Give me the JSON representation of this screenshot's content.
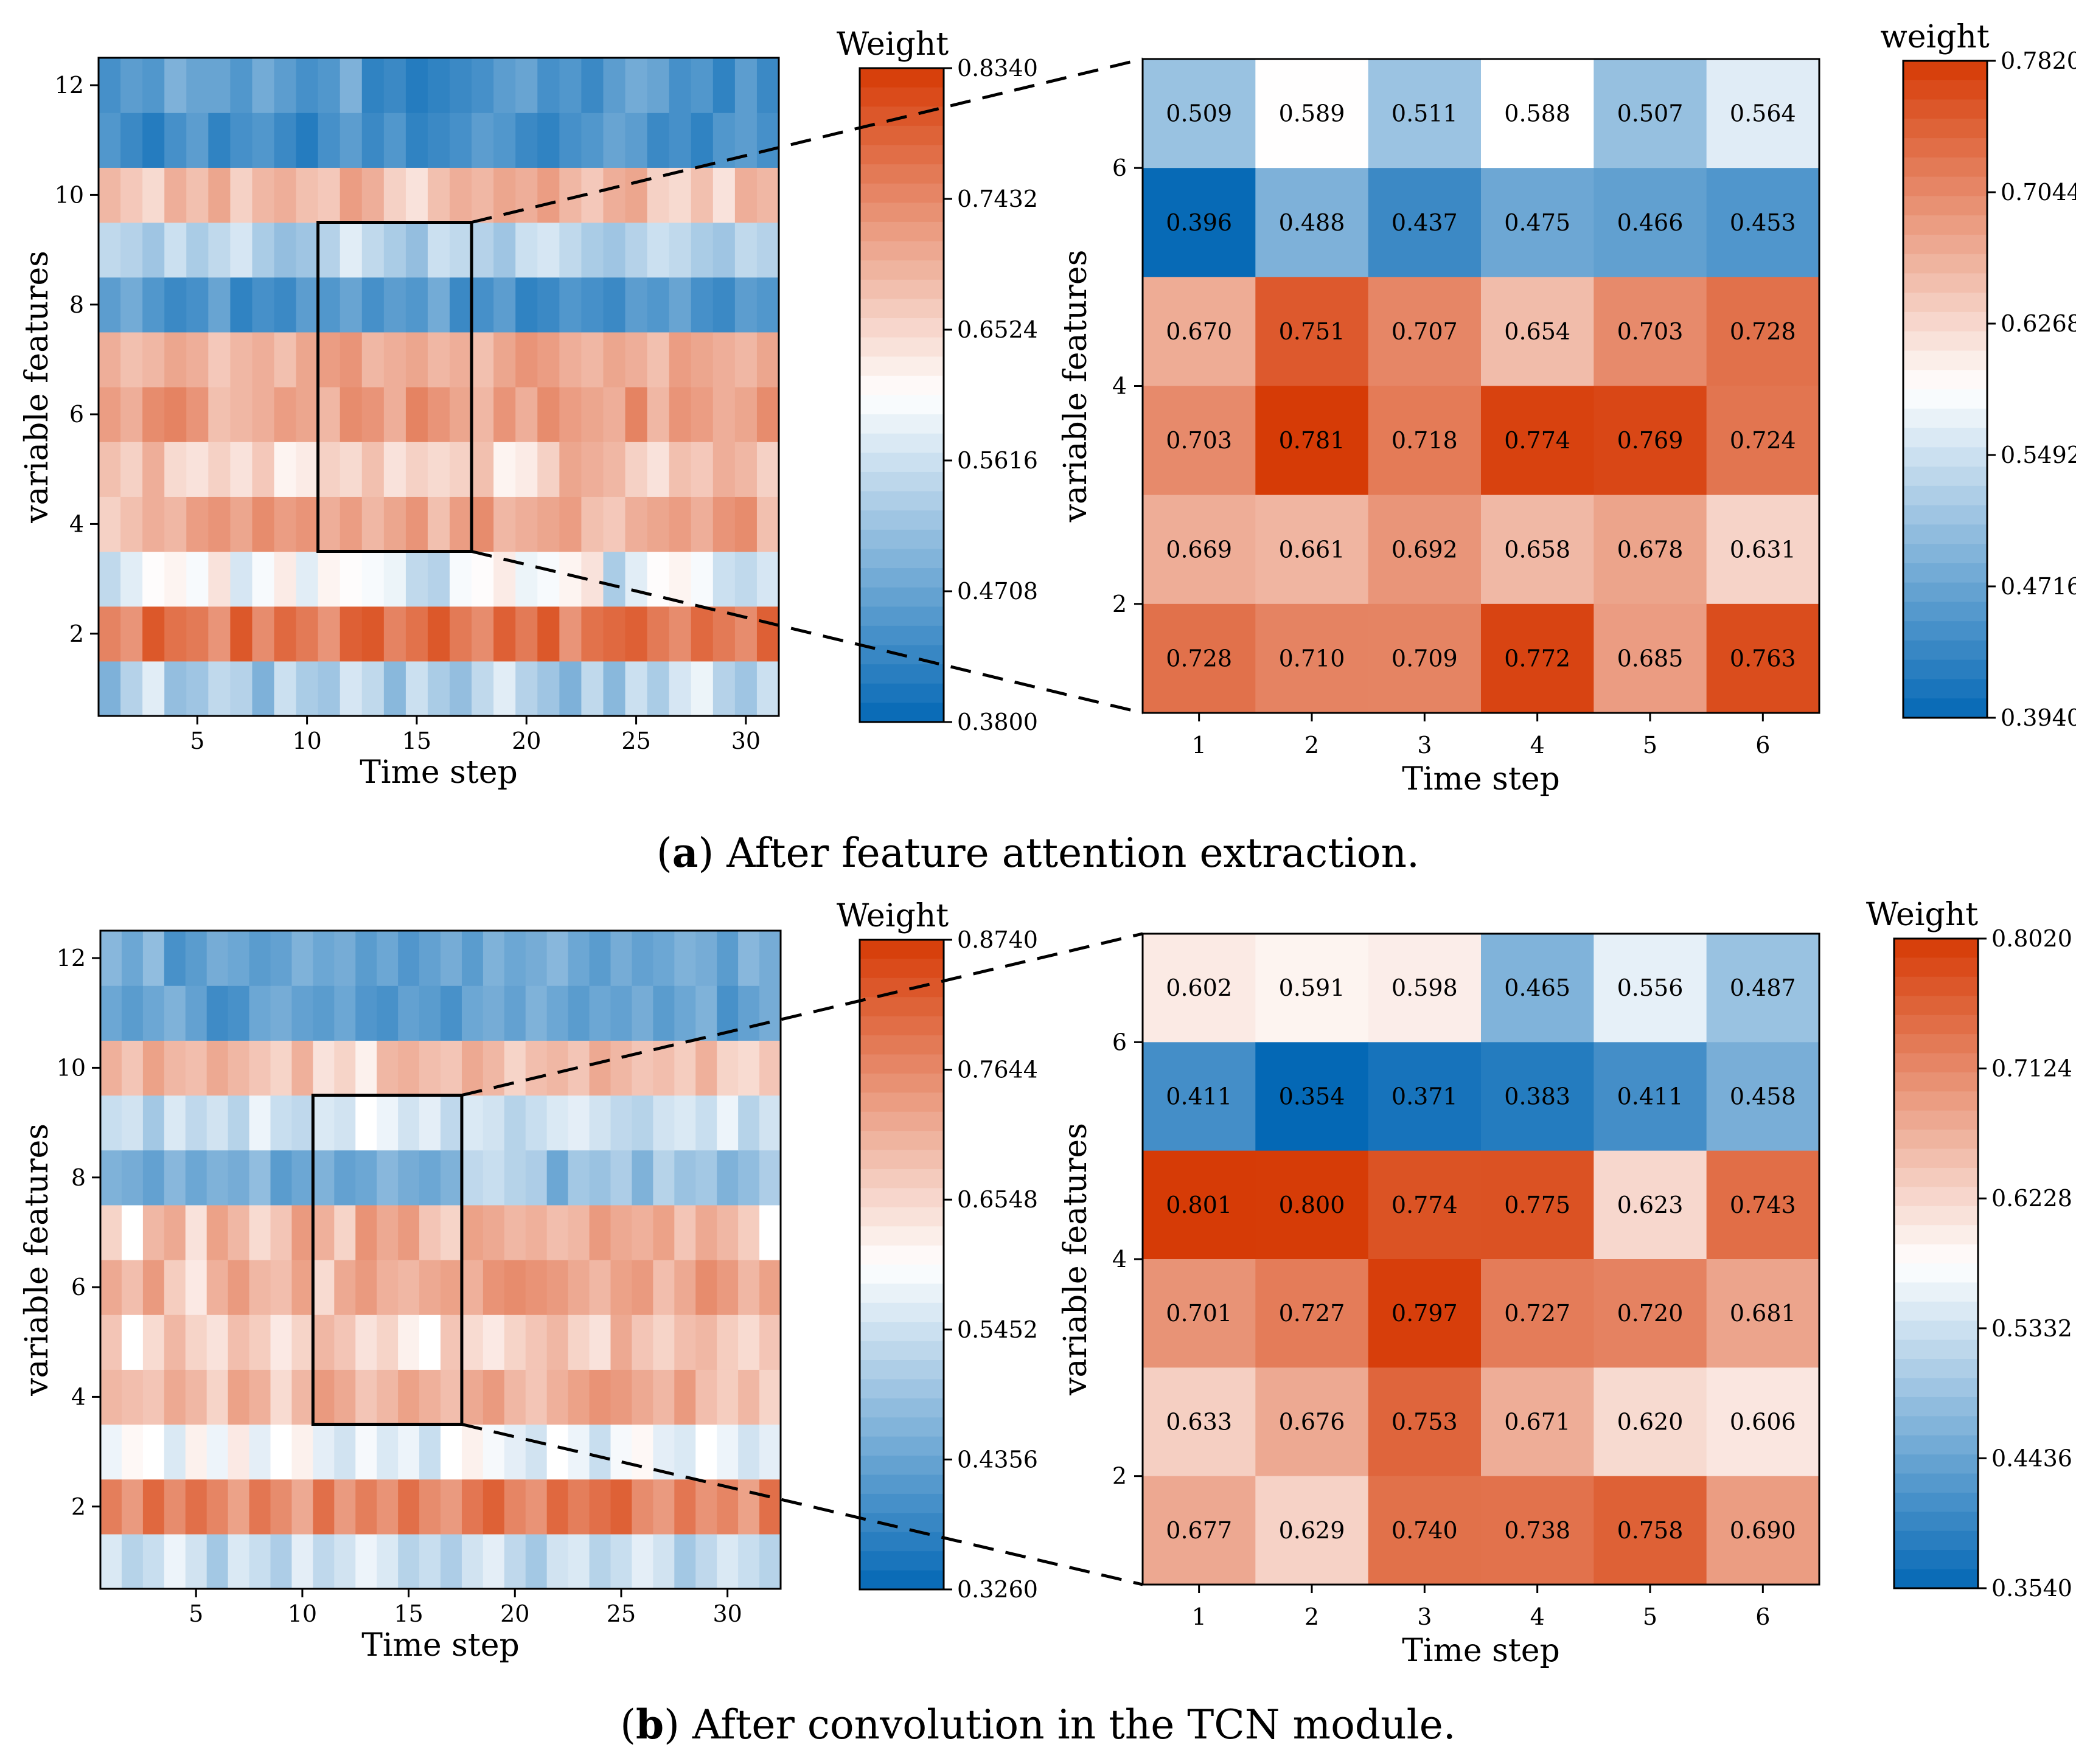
{
  "figure": {
    "captions": [
      {
        "letter": "a",
        "open": "(",
        "close": ")",
        "text": " After feature attention extraction."
      },
      {
        "letter": "b",
        "open": "(",
        "close": ")",
        "text": " After convolution in the TCN module."
      }
    ]
  },
  "colors": {
    "low": "#0468b5",
    "mid": "#ffffff",
    "high": "#d63a05",
    "axis": "#000000",
    "dark_text": "#111111",
    "light_text": "#ffffff"
  },
  "chart_data": [
    {
      "id": "a-overview",
      "type": "heatmap",
      "xlabel": "Time step",
      "ylabel": "variable features",
      "x_range": [
        1,
        31
      ],
      "y_range": [
        1,
        12
      ],
      "xticks": [
        5,
        10,
        15,
        20,
        25,
        30
      ],
      "yticks": [
        2,
        4,
        6,
        8,
        10,
        12
      ],
      "colorbar": {
        "title": "Weight",
        "ticks": [
          "0.8340",
          "0.7432",
          "0.6524",
          "0.5616",
          "0.4708",
          "0.3800"
        ],
        "vmin": 0.38,
        "vmax": 0.834
      },
      "zoom_window": {
        "x_range": [
          11,
          17
        ],
        "y_range": [
          4,
          9
        ]
      },
      "row_means": [
        0.53,
        0.77,
        0.6,
        0.71,
        0.66,
        0.72,
        0.7,
        0.45,
        0.55,
        0.69,
        0.44,
        0.45
      ],
      "values": [
        [
          0.49,
          0.54,
          0.58,
          0.51,
          0.52,
          0.55,
          0.54,
          0.49,
          0.56,
          0.53,
          0.52,
          0.57,
          0.55,
          0.5,
          0.56,
          0.53,
          0.51,
          0.55,
          0.58,
          0.54,
          0.52,
          0.49,
          0.55,
          0.5,
          0.56,
          0.53,
          0.57,
          0.59,
          0.54,
          0.52,
          0.56
        ],
        [
          0.75,
          0.73,
          0.8,
          0.77,
          0.76,
          0.73,
          0.8,
          0.74,
          0.78,
          0.76,
          0.73,
          0.79,
          0.8,
          0.75,
          0.77,
          0.8,
          0.76,
          0.74,
          0.79,
          0.76,
          0.8,
          0.73,
          0.77,
          0.78,
          0.79,
          0.76,
          0.74,
          0.78,
          0.76,
          0.74,
          0.79
        ],
        [
          0.55,
          0.58,
          0.61,
          0.62,
          0.6,
          0.64,
          0.57,
          0.6,
          0.63,
          0.58,
          0.62,
          0.61,
          0.6,
          0.59,
          0.55,
          0.54,
          0.6,
          0.61,
          0.63,
          0.59,
          0.6,
          0.62,
          0.64,
          0.53,
          0.58,
          0.61,
          0.62,
          0.6,
          0.56,
          0.55,
          0.57
        ],
        [
          0.66,
          0.68,
          0.7,
          0.69,
          0.72,
          0.73,
          0.71,
          0.74,
          0.72,
          0.73,
          0.7,
          0.72,
          0.69,
          0.71,
          0.73,
          0.68,
          0.72,
          0.74,
          0.69,
          0.7,
          0.71,
          0.72,
          0.68,
          0.67,
          0.7,
          0.71,
          0.72,
          0.7,
          0.73,
          0.74,
          0.68
        ],
        [
          0.68,
          0.66,
          0.7,
          0.65,
          0.64,
          0.66,
          0.64,
          0.67,
          0.62,
          0.63,
          0.66,
          0.65,
          0.68,
          0.64,
          0.66,
          0.65,
          0.66,
          0.68,
          0.62,
          0.63,
          0.66,
          0.71,
          0.7,
          0.69,
          0.66,
          0.64,
          0.68,
          0.67,
          0.7,
          0.69,
          0.66
        ],
        [
          0.72,
          0.7,
          0.74,
          0.75,
          0.73,
          0.68,
          0.69,
          0.7,
          0.72,
          0.71,
          0.69,
          0.74,
          0.73,
          0.7,
          0.75,
          0.73,
          0.71,
          0.69,
          0.73,
          0.7,
          0.74,
          0.72,
          0.71,
          0.7,
          0.75,
          0.69,
          0.73,
          0.72,
          0.7,
          0.71,
          0.74
        ],
        [
          0.7,
          0.68,
          0.69,
          0.71,
          0.7,
          0.67,
          0.69,
          0.7,
          0.68,
          0.71,
          0.72,
          0.73,
          0.69,
          0.7,
          0.71,
          0.69,
          0.7,
          0.68,
          0.71,
          0.73,
          0.72,
          0.7,
          0.69,
          0.71,
          0.7,
          0.68,
          0.72,
          0.71,
          0.7,
          0.69,
          0.71
        ],
        [
          0.46,
          0.48,
          0.45,
          0.43,
          0.44,
          0.47,
          0.42,
          0.44,
          0.43,
          0.46,
          0.45,
          0.47,
          0.44,
          0.46,
          0.45,
          0.48,
          0.43,
          0.44,
          0.46,
          0.42,
          0.43,
          0.45,
          0.44,
          0.43,
          0.46,
          0.45,
          0.47,
          0.44,
          0.43,
          0.46,
          0.45
        ],
        [
          0.55,
          0.54,
          0.52,
          0.56,
          0.53,
          0.55,
          0.57,
          0.53,
          0.51,
          0.52,
          0.54,
          0.58,
          0.55,
          0.53,
          0.51,
          0.56,
          0.55,
          0.54,
          0.52,
          0.56,
          0.57,
          0.55,
          0.53,
          0.52,
          0.54,
          0.56,
          0.55,
          0.53,
          0.52,
          0.55,
          0.54
        ],
        [
          0.69,
          0.67,
          0.65,
          0.7,
          0.68,
          0.71,
          0.66,
          0.69,
          0.7,
          0.68,
          0.67,
          0.72,
          0.7,
          0.66,
          0.64,
          0.68,
          0.7,
          0.69,
          0.71,
          0.7,
          0.72,
          0.69,
          0.67,
          0.7,
          0.71,
          0.66,
          0.65,
          0.68,
          0.64,
          0.7,
          0.69
        ],
        [
          0.45,
          0.43,
          0.41,
          0.44,
          0.46,
          0.42,
          0.44,
          0.45,
          0.43,
          0.41,
          0.44,
          0.46,
          0.43,
          0.45,
          0.42,
          0.43,
          0.44,
          0.46,
          0.45,
          0.43,
          0.42,
          0.44,
          0.45,
          0.47,
          0.46,
          0.43,
          0.44,
          0.42,
          0.45,
          0.46,
          0.44
        ],
        [
          0.44,
          0.46,
          0.45,
          0.49,
          0.47,
          0.47,
          0.45,
          0.48,
          0.46,
          0.44,
          0.45,
          0.49,
          0.42,
          0.43,
          0.41,
          0.42,
          0.43,
          0.44,
          0.46,
          0.47,
          0.44,
          0.45,
          0.43,
          0.46,
          0.48,
          0.47,
          0.44,
          0.45,
          0.42,
          0.46,
          0.43
        ]
      ]
    },
    {
      "id": "a-zoom",
      "type": "heatmap",
      "xlabel": "Time step",
      "ylabel": "variable features",
      "x_categories": [
        "1",
        "2",
        "3",
        "4",
        "5",
        "6"
      ],
      "y_ticks": [
        "2",
        "4",
        "6"
      ],
      "colorbar": {
        "title": "weight",
        "ticks": [
          "0.7820",
          "0.7044",
          "0.6268",
          "0.5492",
          "0.4716",
          "0.3940"
        ],
        "vmin": 0.394,
        "vmax": 0.782
      },
      "rows_top_to_bottom": [
        {
          "values": [
            0.509,
            0.589,
            0.511,
            0.588,
            0.507,
            0.564
          ],
          "labels": [
            "0.509",
            "0.589",
            "0.511",
            "0.588",
            "0.507",
            "0.564"
          ]
        },
        {
          "values": [
            0.396,
            0.488,
            0.437,
            0.475,
            0.466,
            0.453
          ],
          "labels": [
            "0.396",
            "0.488",
            "0.437",
            "0.475",
            "0.466",
            "0.453"
          ]
        },
        {
          "values": [
            0.67,
            0.751,
            0.707,
            0.654,
            0.703,
            0.728
          ],
          "labels": [
            "0.670",
            "0.751",
            "0.707",
            "0.654",
            "0.703",
            "0.728"
          ]
        },
        {
          "values": [
            0.703,
            0.781,
            0.718,
            0.774,
            0.769,
            0.724
          ],
          "labels": [
            "0.703",
            "0.781",
            "0.718",
            "0.774",
            "0.769",
            "0.724"
          ]
        },
        {
          "values": [
            0.669,
            0.661,
            0.692,
            0.658,
            0.678,
            0.631
          ],
          "labels": [
            "0.669",
            "0.661",
            "0.692",
            "0.658",
            "0.678",
            "0.631"
          ]
        },
        {
          "values": [
            0.728,
            0.71,
            0.709,
            0.772,
            0.685,
            0.763
          ],
          "labels": [
            "0.728",
            "0.710",
            "0.709",
            "0.772",
            "0.685",
            "0.763"
          ]
        }
      ]
    },
    {
      "id": "b-overview",
      "type": "heatmap",
      "xlabel": "Time step",
      "ylabel": "variable features",
      "x_range": [
        1,
        32
      ],
      "y_range": [
        1,
        12
      ],
      "xticks": [
        5,
        10,
        15,
        20,
        25,
        30
      ],
      "yticks": [
        2,
        4,
        6,
        8,
        10,
        12
      ],
      "colorbar": {
        "title": "Weight",
        "ticks": [
          "0.8740",
          "0.7644",
          "0.6548",
          "0.5452",
          "0.4356",
          "0.3260"
        ],
        "vmin": 0.326,
        "vmax": 0.874
      },
      "zoom_window": {
        "x_range": [
          11,
          17
        ],
        "y_range": [
          4,
          9
        ]
      },
      "values": [
        [
          0.56,
          0.52,
          0.54,
          0.58,
          0.55,
          0.5,
          0.56,
          0.54,
          0.51,
          0.57,
          0.53,
          0.55,
          0.58,
          0.56,
          0.52,
          0.54,
          0.51,
          0.55,
          0.57,
          0.53,
          0.5,
          0.55,
          0.56,
          0.52,
          0.54,
          0.57,
          0.55,
          0.5,
          0.53,
          0.56,
          0.54,
          0.52
        ],
        [
          0.78,
          0.74,
          0.81,
          0.76,
          0.8,
          0.77,
          0.73,
          0.79,
          0.76,
          0.72,
          0.8,
          0.74,
          0.78,
          0.75,
          0.8,
          0.76,
          0.74,
          0.79,
          0.82,
          0.77,
          0.75,
          0.81,
          0.78,
          0.8,
          0.82,
          0.76,
          0.74,
          0.79,
          0.75,
          0.77,
          0.73,
          0.8
        ],
        [
          0.58,
          0.61,
          0.6,
          0.56,
          0.62,
          0.58,
          0.63,
          0.57,
          0.6,
          0.62,
          0.57,
          0.55,
          0.59,
          0.56,
          0.58,
          0.54,
          0.6,
          0.62,
          0.59,
          0.57,
          0.55,
          0.6,
          0.58,
          0.54,
          0.59,
          0.61,
          0.57,
          0.56,
          0.6,
          0.58,
          0.55,
          0.57
        ],
        [
          0.7,
          0.69,
          0.68,
          0.72,
          0.7,
          0.66,
          0.73,
          0.71,
          0.65,
          0.7,
          0.74,
          0.72,
          0.68,
          0.7,
          0.73,
          0.71,
          0.69,
          0.72,
          0.74,
          0.7,
          0.68,
          0.71,
          0.73,
          0.75,
          0.74,
          0.72,
          0.7,
          0.74,
          0.69,
          0.67,
          0.7,
          0.66
        ],
        [
          0.68,
          0.6,
          0.65,
          0.7,
          0.66,
          0.64,
          0.69,
          0.67,
          0.63,
          0.66,
          0.7,
          0.68,
          0.64,
          0.66,
          0.62,
          0.6,
          0.68,
          0.65,
          0.63,
          0.66,
          0.68,
          0.7,
          0.66,
          0.64,
          0.72,
          0.68,
          0.66,
          0.69,
          0.7,
          0.67,
          0.65,
          0.68
        ],
        [
          0.72,
          0.69,
          0.74,
          0.67,
          0.63,
          0.71,
          0.74,
          0.7,
          0.69,
          0.73,
          0.65,
          0.72,
          0.74,
          0.71,
          0.7,
          0.72,
          0.73,
          0.71,
          0.75,
          0.76,
          0.75,
          0.74,
          0.72,
          0.7,
          0.73,
          0.74,
          0.69,
          0.72,
          0.76,
          0.74,
          0.7,
          0.73
        ],
        [
          0.66,
          0.6,
          0.7,
          0.72,
          0.64,
          0.73,
          0.7,
          0.65,
          0.68,
          0.74,
          0.71,
          0.66,
          0.75,
          0.72,
          0.74,
          0.68,
          0.66,
          0.73,
          0.72,
          0.7,
          0.71,
          0.69,
          0.7,
          0.74,
          0.72,
          0.71,
          0.73,
          0.68,
          0.72,
          0.7,
          0.67,
          0.6
        ],
        [
          0.46,
          0.45,
          0.43,
          0.47,
          0.44,
          0.46,
          0.45,
          0.48,
          0.42,
          0.44,
          0.46,
          0.43,
          0.44,
          0.47,
          0.45,
          0.44,
          0.46,
          0.53,
          0.54,
          0.52,
          0.51,
          0.44,
          0.5,
          0.49,
          0.51,
          0.46,
          0.52,
          0.49,
          0.5,
          0.46,
          0.48,
          0.51
        ],
        [
          0.54,
          0.55,
          0.5,
          0.56,
          0.53,
          0.55,
          0.52,
          0.58,
          0.54,
          0.53,
          0.56,
          0.55,
          0.6,
          0.58,
          0.55,
          0.57,
          0.53,
          0.56,
          0.55,
          0.52,
          0.54,
          0.56,
          0.57,
          0.55,
          0.53,
          0.52,
          0.55,
          0.56,
          0.54,
          0.58,
          0.52,
          0.55
        ],
        [
          0.71,
          0.68,
          0.73,
          0.7,
          0.69,
          0.72,
          0.7,
          0.68,
          0.66,
          0.71,
          0.64,
          0.66,
          0.62,
          0.7,
          0.71,
          0.69,
          0.68,
          0.72,
          0.7,
          0.66,
          0.69,
          0.7,
          0.68,
          0.72,
          0.7,
          0.68,
          0.69,
          0.67,
          0.71,
          0.66,
          0.65,
          0.68
        ],
        [
          0.44,
          0.42,
          0.44,
          0.46,
          0.43,
          0.39,
          0.4,
          0.44,
          0.45,
          0.43,
          0.42,
          0.44,
          0.41,
          0.4,
          0.43,
          0.42,
          0.4,
          0.44,
          0.45,
          0.43,
          0.46,
          0.44,
          0.42,
          0.44,
          0.43,
          0.45,
          0.42,
          0.44,
          0.46,
          0.4,
          0.43,
          0.45
        ],
        [
          0.47,
          0.44,
          0.48,
          0.4,
          0.42,
          0.45,
          0.44,
          0.42,
          0.43,
          0.46,
          0.44,
          0.45,
          0.42,
          0.44,
          0.41,
          0.43,
          0.45,
          0.42,
          0.46,
          0.44,
          0.45,
          0.47,
          0.44,
          0.42,
          0.45,
          0.43,
          0.44,
          0.46,
          0.45,
          0.42,
          0.47,
          0.45
        ]
      ]
    },
    {
      "id": "b-zoom",
      "type": "heatmap",
      "xlabel": "Time step",
      "ylabel": "variable features",
      "x_categories": [
        "1",
        "2",
        "3",
        "4",
        "5",
        "6"
      ],
      "y_ticks": [
        "2",
        "4",
        "6"
      ],
      "colorbar": {
        "title": "Weight",
        "ticks": [
          "0.8020",
          "0.7124",
          "0.6228",
          "0.5332",
          "0.4436",
          "0.3540"
        ],
        "vmin": 0.354,
        "vmax": 0.802
      },
      "rows_top_to_bottom": [
        {
          "values": [
            0.602,
            0.591,
            0.598,
            0.465,
            0.556,
            0.487
          ],
          "labels": [
            "0.602",
            "0.591",
            "0.598",
            "0.465",
            "0.556",
            "0.487"
          ]
        },
        {
          "values": [
            0.411,
            0.354,
            0.371,
            0.383,
            0.411,
            0.458
          ],
          "labels": [
            "0.411",
            "0.354",
            "0.371",
            "0.383",
            "0.411",
            "0.458"
          ]
        },
        {
          "values": [
            0.801,
            0.8,
            0.774,
            0.775,
            0.623,
            0.743
          ],
          "labels": [
            "0.801",
            "0.800",
            "0.774",
            "0.775",
            "0.623",
            "0.743"
          ]
        },
        {
          "values": [
            0.701,
            0.727,
            0.797,
            0.727,
            0.72,
            0.681
          ],
          "labels": [
            "0.701",
            "0.727",
            "0.797",
            "0.727",
            "0.720",
            "0.681"
          ]
        },
        {
          "values": [
            0.633,
            0.676,
            0.753,
            0.671,
            0.62,
            0.606
          ],
          "labels": [
            "0.633",
            "0.676",
            "0.753",
            "0.671",
            "0.620",
            "0.606"
          ]
        },
        {
          "values": [
            0.677,
            0.629,
            0.74,
            0.738,
            0.758,
            0.69
          ],
          "labels": [
            "0.677",
            "0.629",
            "0.740",
            "0.738",
            "0.758",
            "0.690"
          ]
        }
      ]
    }
  ]
}
